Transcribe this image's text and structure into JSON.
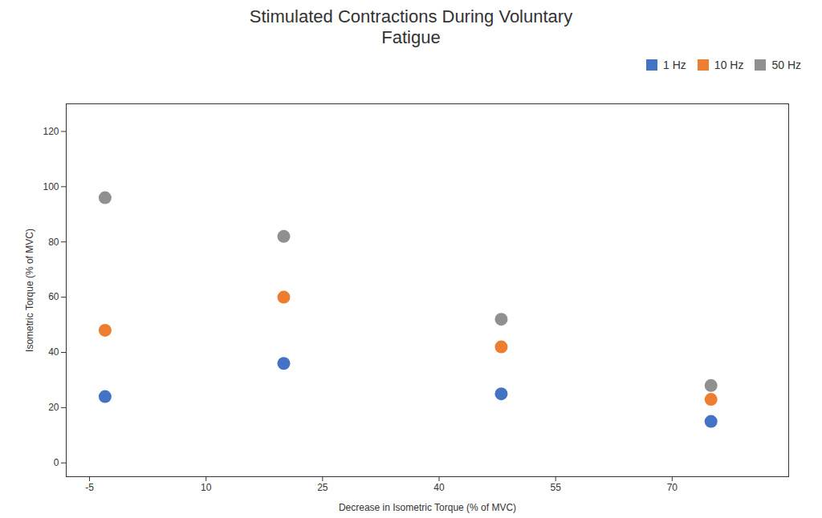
{
  "chart_data": {
    "type": "scatter",
    "title": "Stimulated Contractions During Voluntary\nFatigue",
    "x_label": "Decrease in Isometric Torque (% of MVC)",
    "y_label": "Isometric Torque (% of MVC)",
    "x": [
      -3,
      20,
      48,
      75
    ],
    "series": [
      {
        "name": "1 Hz",
        "color": "#4472C4",
        "values": [
          24,
          36,
          25,
          15
        ]
      },
      {
        "name": "10 Hz",
        "color": "#ED7D31",
        "values": [
          48,
          60,
          42,
          23
        ]
      },
      {
        "name": "50 Hz",
        "color": "#909090",
        "values": [
          96,
          82,
          52,
          28
        ]
      }
    ],
    "xlim": [
      -8,
      85
    ],
    "ylim": [
      -5,
      130
    ],
    "xticks": [
      -5,
      10,
      25,
      40,
      55,
      70
    ],
    "yticks": [
      0,
      20,
      40,
      60,
      80,
      100,
      120
    ],
    "grid": false,
    "legend": "upper right"
  }
}
